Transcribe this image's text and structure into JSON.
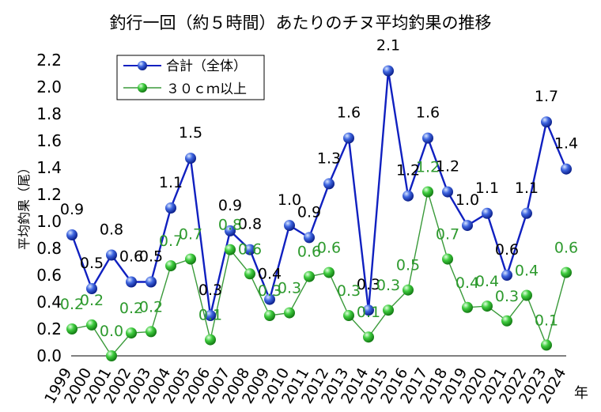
{
  "chart_data": {
    "type": "line",
    "title": "釣行一回（約５時間）あたりのチヌ平均釣果の推移",
    "ylabel": "平均釣果（尾）",
    "xlabel": "年",
    "ylim": [
      0,
      2.2
    ],
    "ytick_step": 0.2,
    "yticks": [
      "0.0",
      "0.2",
      "0.4",
      "0.6",
      "0.8",
      "1.0",
      "1.2",
      "1.4",
      "1.6",
      "1.8",
      "2.0",
      "2.2"
    ],
    "categories": [
      "1999",
      "2000",
      "2001",
      "2002",
      "2003",
      "2004",
      "2005",
      "2006",
      "2007",
      "2008",
      "2009",
      "2010",
      "2011",
      "2012",
      "2013",
      "2014",
      "2015",
      "2016",
      "2017",
      "2018",
      "2019",
      "2020",
      "2021",
      "2022",
      "2023",
      "2024"
    ],
    "series": [
      {
        "name": "合計（全体）",
        "color": "#1020c0",
        "marker_color": "#2a4fd8",
        "values": [
          0.9,
          0.5,
          0.75,
          0.55,
          0.55,
          1.1,
          1.47,
          0.3,
          0.93,
          0.79,
          0.42,
          0.97,
          0.88,
          1.28,
          1.62,
          0.34,
          2.12,
          1.19,
          1.62,
          1.22,
          0.97,
          1.06,
          0.6,
          1.06,
          1.74,
          1.39
        ],
        "labels": [
          "0.9",
          "0.5",
          "0.8",
          "0.6",
          "0.5",
          "1.1",
          "1.5",
          "0.3",
          "0.9",
          "0.8",
          "0.4",
          "1.0",
          "0.9",
          "1.3",
          "1.6",
          "0.3",
          "2.1",
          "1.2",
          "1.6",
          "1.2",
          "1.0",
          "1.1",
          "0.6",
          "1.1",
          "1.7",
          "1.4"
        ]
      },
      {
        "name": "３０ｃｍ以上",
        "color": "#3a9a3a",
        "marker_color": "#33b833",
        "values": [
          0.2,
          0.23,
          0.0,
          0.17,
          0.18,
          0.67,
          0.72,
          0.12,
          0.79,
          0.61,
          0.3,
          0.32,
          0.59,
          0.62,
          0.3,
          0.14,
          0.34,
          0.49,
          1.22,
          0.72,
          0.36,
          0.37,
          0.26,
          0.45,
          0.08,
          0.62
        ],
        "labels": [
          "0.2",
          "0.2",
          "0.0",
          "0.2",
          "0.2",
          "0.7",
          "0.7",
          "0.1",
          "0.8",
          "0.6",
          "0.3",
          "0.3",
          "0.6",
          "0.6",
          "0.3",
          "0.1",
          "0.3",
          "0.5",
          "1.2",
          "0.7",
          "0.4",
          "0.4",
          "0.3",
          "0.4",
          "0.1",
          "0.6"
        ]
      }
    ],
    "grid": false,
    "legend_position": "top-left"
  }
}
